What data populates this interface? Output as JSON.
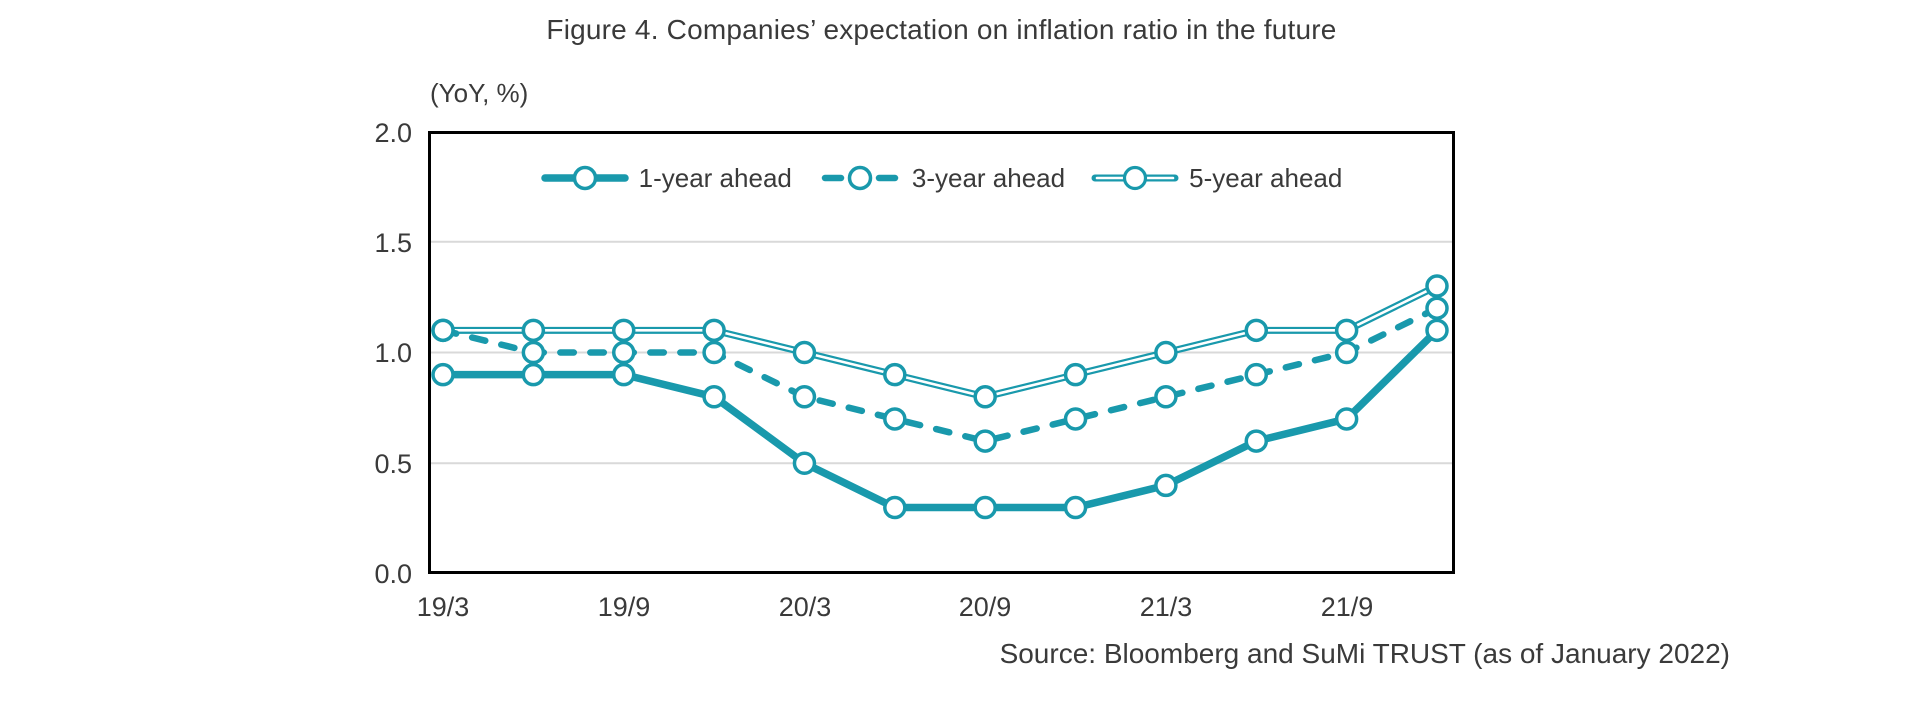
{
  "title": "Figure 4. Companies’ expectation on inflation ratio in the future",
  "source": "Source: Bloomberg and SuMi TRUST (as of January 2022)",
  "colors": {
    "accent": "#1999ac",
    "text": "#3a3a3a",
    "grid": "#d9d9d9",
    "axis_border": "#000000",
    "marker_fill": "#ffffff"
  },
  "y_axis": {
    "unit_label": "(YoY, %)",
    "ticks": [
      "2.0",
      "1.5",
      "1.0",
      "0.5",
      "0.0"
    ]
  },
  "x_axis": {
    "ticks": [
      "19/3",
      "19/9",
      "20/3",
      "20/9",
      "21/3",
      "21/9"
    ]
  },
  "legend": {
    "items": [
      {
        "label": "1-year ahead",
        "style": "solid-thick"
      },
      {
        "label": "3-year ahead",
        "style": "dashed"
      },
      {
        "label": "5-year ahead",
        "style": "double-line"
      }
    ]
  },
  "chart_data": {
    "type": "line",
    "title": "Figure 4. Companies’ expectation on inflation ratio in the future",
    "ylabel": "(YoY, %)",
    "ylim": [
      0,
      2.0
    ],
    "y_ticks": [
      2.0,
      1.5,
      1.0,
      0.5,
      0.0
    ],
    "grid_values": [
      1.5,
      1.0,
      0.5
    ],
    "grid": "horizontal",
    "legend_position": "top-center-inside",
    "categories": [
      "19/3",
      "19/6",
      "19/9",
      "19/12",
      "20/3",
      "20/6",
      "20/9",
      "20/12",
      "21/3",
      "21/6",
      "21/9",
      "21/12"
    ],
    "x_tick_labels_shown": [
      "19/3",
      "19/9",
      "20/3",
      "20/9",
      "21/3",
      "21/9"
    ],
    "series": [
      {
        "name": "5-year ahead",
        "style": "double-line",
        "values": [
          1.1,
          1.1,
          1.1,
          1.1,
          1.0,
          0.9,
          0.8,
          0.9,
          1.0,
          1.1,
          1.1,
          1.3
        ]
      },
      {
        "name": "3-year ahead",
        "style": "dashed",
        "values": [
          1.1,
          1.0,
          1.0,
          1.0,
          0.8,
          0.7,
          0.6,
          0.7,
          0.8,
          0.9,
          1.0,
          1.2
        ]
      },
      {
        "name": "1-year ahead",
        "style": "solid-thick",
        "values": [
          0.9,
          0.9,
          0.9,
          0.8,
          0.5,
          0.3,
          0.3,
          0.3,
          0.4,
          0.6,
          0.7,
          1.1
        ]
      }
    ]
  }
}
